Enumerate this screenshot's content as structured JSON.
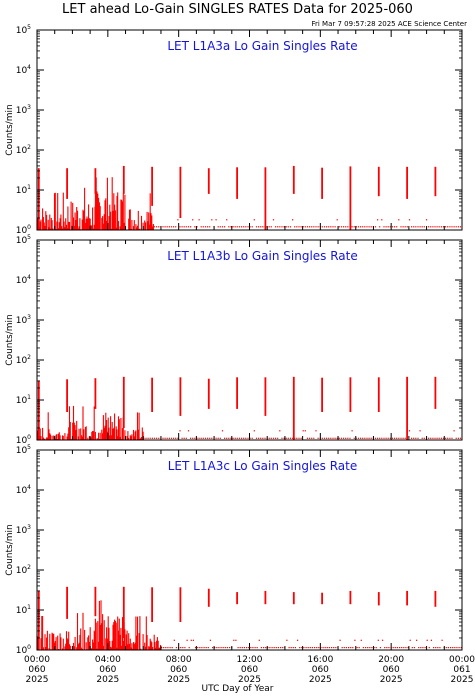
{
  "header": {
    "title": "LET ahead Lo-Gain SINGLES RATES Data for 2025-060",
    "timestamp": "Fri Mar  7 09:57:28 2025 ACE Science Center"
  },
  "x_axis_title": "UTC Day of Year",
  "colors": {
    "data": "#ff0000",
    "panel_title": "#1414dc",
    "axes": "#000000"
  },
  "chart_data": [
    {
      "type": "line",
      "title": "LET L1A3a Lo Gain Singles Rate",
      "ylabel": "Counts/min",
      "yscale": "log",
      "ylim": [
        1,
        100000
      ],
      "xlim": [
        0,
        24
      ],
      "y_ticks": [
        {
          "base": "10",
          "exp": "0"
        },
        {
          "base": "10",
          "exp": "1"
        },
        {
          "base": "10",
          "exp": "2"
        },
        {
          "base": "10",
          "exp": "3"
        },
        {
          "base": "10",
          "exp": "4"
        },
        {
          "base": "10",
          "exp": "5"
        }
      ],
      "spikes": [
        {
          "x": 0.1,
          "high": 35,
          "low": 1
        },
        {
          "x": 1.7,
          "high": 35,
          "low": 6
        },
        {
          "x": 3.3,
          "high": 35,
          "low": 8
        },
        {
          "x": 4.9,
          "high": 40,
          "low": 8
        },
        {
          "x": 6.5,
          "high": 38,
          "low": 4
        },
        {
          "x": 8.1,
          "high": 38,
          "low": 2
        },
        {
          "x": 9.7,
          "high": 35,
          "low": 8
        },
        {
          "x": 11.3,
          "high": 37,
          "low": 6
        },
        {
          "x": 12.9,
          "high": 37,
          "low": 1
        },
        {
          "x": 14.5,
          "high": 40,
          "low": 8
        },
        {
          "x": 16.1,
          "high": 36,
          "low": 6
        },
        {
          "x": 17.7,
          "high": 39,
          "low": 1
        },
        {
          "x": 19.3,
          "high": 38,
          "low": 7
        },
        {
          "x": 20.9,
          "high": 38,
          "low": 6
        },
        {
          "x": 22.5,
          "high": 38,
          "low": 7
        }
      ],
      "noise": [
        {
          "x0": 0.0,
          "x1": 1.7,
          "level": 3
        },
        {
          "x0": 1.7,
          "x1": 3.3,
          "level": 4
        },
        {
          "x0": 3.3,
          "x1": 5.0,
          "level": 7
        },
        {
          "x0": 5.0,
          "x1": 6.6,
          "level": 3
        }
      ],
      "floor": [
        {
          "x0": 6.6,
          "x1": 24,
          "level": 1.2
        }
      ]
    },
    {
      "type": "line",
      "title": "LET L1A3b Lo Gain Singles Rate",
      "ylabel": "Counts/min",
      "yscale": "log",
      "ylim": [
        1,
        100000
      ],
      "xlim": [
        0,
        24
      ],
      "y_ticks": [
        {
          "base": "10",
          "exp": "0"
        },
        {
          "base": "10",
          "exp": "1"
        },
        {
          "base": "10",
          "exp": "2"
        },
        {
          "base": "10",
          "exp": "3"
        },
        {
          "base": "10",
          "exp": "4"
        },
        {
          "base": "10",
          "exp": "5"
        }
      ],
      "spikes": [
        {
          "x": 0.1,
          "high": 30,
          "low": 1
        },
        {
          "x": 1.7,
          "high": 33,
          "low": 5
        },
        {
          "x": 3.3,
          "high": 35,
          "low": 6
        },
        {
          "x": 4.9,
          "high": 38,
          "low": 2
        },
        {
          "x": 6.5,
          "high": 36,
          "low": 5
        },
        {
          "x": 8.1,
          "high": 37,
          "low": 4
        },
        {
          "x": 9.7,
          "high": 34,
          "low": 6
        },
        {
          "x": 11.3,
          "high": 37,
          "low": 6
        },
        {
          "x": 12.9,
          "high": 37,
          "low": 4
        },
        {
          "x": 14.5,
          "high": 38,
          "low": 1
        },
        {
          "x": 16.1,
          "high": 36,
          "low": 5
        },
        {
          "x": 17.7,
          "high": 37,
          "low": 5
        },
        {
          "x": 19.3,
          "high": 37,
          "low": 5
        },
        {
          "x": 20.9,
          "high": 38,
          "low": 1
        },
        {
          "x": 22.5,
          "high": 38,
          "low": 6
        }
      ],
      "noise": [
        {
          "x0": 0.0,
          "x1": 1.7,
          "level": 1.8
        },
        {
          "x0": 1.7,
          "x1": 3.3,
          "level": 2.5
        },
        {
          "x0": 3.3,
          "x1": 5.0,
          "level": 4
        },
        {
          "x0": 5.0,
          "x1": 6.0,
          "level": 1.8
        }
      ],
      "floor": [
        {
          "x0": 6.0,
          "x1": 24,
          "level": 1.1
        }
      ]
    },
    {
      "type": "line",
      "title": "LET L1A3c Lo Gain Singles Rate",
      "ylabel": "Counts/min",
      "yscale": "log",
      "ylim": [
        1,
        100000
      ],
      "xlim": [
        0,
        24
      ],
      "y_ticks": [
        {
          "base": "10",
          "exp": "0"
        },
        {
          "base": "10",
          "exp": "1"
        },
        {
          "base": "10",
          "exp": "2"
        },
        {
          "base": "10",
          "exp": "3"
        },
        {
          "base": "10",
          "exp": "4"
        },
        {
          "base": "10",
          "exp": "5"
        }
      ],
      "spikes": [
        {
          "x": 0.1,
          "high": 30,
          "low": 1
        },
        {
          "x": 1.7,
          "high": 38,
          "low": 6
        },
        {
          "x": 3.3,
          "high": 38,
          "low": 7
        },
        {
          "x": 4.9,
          "high": 38,
          "low": 2
        },
        {
          "x": 6.5,
          "high": 37,
          "low": 5
        },
        {
          "x": 8.1,
          "high": 37,
          "low": 5
        },
        {
          "x": 9.7,
          "high": 34,
          "low": 12
        },
        {
          "x": 11.3,
          "high": 28,
          "low": 14
        },
        {
          "x": 12.9,
          "high": 30,
          "low": 14
        },
        {
          "x": 14.5,
          "high": 28,
          "low": 14
        },
        {
          "x": 16.1,
          "high": 27,
          "low": 14
        },
        {
          "x": 17.7,
          "high": 30,
          "low": 14
        },
        {
          "x": 19.3,
          "high": 28,
          "low": 13
        },
        {
          "x": 20.9,
          "high": 30,
          "low": 13
        },
        {
          "x": 22.5,
          "high": 30,
          "low": 12
        }
      ],
      "noise": [
        {
          "x0": 0.0,
          "x1": 1.7,
          "level": 2.5
        },
        {
          "x0": 1.7,
          "x1": 3.3,
          "level": 3
        },
        {
          "x0": 3.3,
          "x1": 5.0,
          "level": 6
        },
        {
          "x0": 5.0,
          "x1": 7.0,
          "level": 2.5
        }
      ],
      "floor": [
        {
          "x0": 7.0,
          "x1": 24,
          "level": 1.15
        }
      ]
    }
  ],
  "x_ticks": [
    {
      "time": "00:00",
      "doy": "060",
      "year": "2025",
      "hour": 0
    },
    {
      "time": "04:00",
      "doy": "060",
      "year": "2025",
      "hour": 4
    },
    {
      "time": "08:00",
      "doy": "060",
      "year": "2025",
      "hour": 8
    },
    {
      "time": "12:00",
      "doy": "060",
      "year": "2025",
      "hour": 12
    },
    {
      "time": "16:00",
      "doy": "060",
      "year": "2025",
      "hour": 16
    },
    {
      "time": "20:00",
      "doy": "060",
      "year": "2025",
      "hour": 20
    },
    {
      "time": "00:00",
      "doy": "061",
      "year": "2025",
      "hour": 24
    }
  ]
}
